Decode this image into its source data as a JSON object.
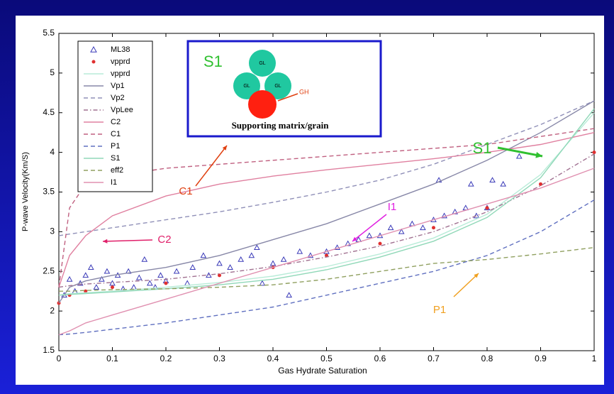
{
  "chart_data": {
    "type": "line",
    "xlabel": "Gas Hydrate Saturation",
    "ylabel": "P-wave Velocity(Km/S)",
    "xlim": [
      0,
      1
    ],
    "ylim": [
      1.5,
      5.5
    ],
    "xticks": [
      0,
      0.1,
      0.2,
      0.3,
      0.4,
      0.5,
      0.6,
      0.7,
      0.8,
      0.9,
      1
    ],
    "yticks": [
      1.5,
      2,
      2.5,
      3,
      3.5,
      4,
      4.5,
      5,
      5.5
    ],
    "grid": false,
    "legend": "upper left",
    "x": [
      0,
      0.02,
      0.05,
      0.1,
      0.2,
      0.3,
      0.4,
      0.5,
      0.6,
      0.7,
      0.8,
      0.9,
      1
    ],
    "series": [
      {
        "name": "ML38",
        "color": "#3a3ab8",
        "marker": "triangle",
        "x": [
          0.01,
          0.02,
          0.03,
          0.04,
          0.05,
          0.06,
          0.07,
          0.08,
          0.09,
          0.1,
          0.11,
          0.12,
          0.13,
          0.14,
          0.15,
          0.16,
          0.17,
          0.18,
          0.19,
          0.2,
          0.22,
          0.24,
          0.25,
          0.27,
          0.28,
          0.3,
          0.32,
          0.34,
          0.36,
          0.37,
          0.38,
          0.4,
          0.42,
          0.43,
          0.45,
          0.47,
          0.5,
          0.52,
          0.54,
          0.56,
          0.58,
          0.6,
          0.62,
          0.64,
          0.66,
          0.68,
          0.7,
          0.71,
          0.72,
          0.74,
          0.76,
          0.77,
          0.78,
          0.8,
          0.81,
          0.83,
          0.86
        ],
        "values": [
          2.2,
          2.4,
          2.25,
          2.35,
          2.45,
          2.55,
          2.3,
          2.4,
          2.5,
          2.35,
          2.45,
          2.28,
          2.5,
          2.3,
          2.42,
          2.65,
          2.35,
          2.3,
          2.45,
          2.38,
          2.5,
          2.35,
          2.55,
          2.7,
          2.45,
          2.6,
          2.55,
          2.65,
          2.7,
          2.8,
          2.35,
          2.6,
          2.65,
          2.2,
          2.75,
          2.7,
          2.75,
          2.8,
          2.85,
          2.9,
          2.95,
          2.95,
          3.05,
          3.0,
          3.1,
          3.05,
          3.15,
          3.65,
          3.2,
          3.25,
          3.3,
          3.6,
          3.2,
          3.3,
          3.65,
          3.6,
          3.95
        ]
      },
      {
        "name": "vpprd",
        "color": "#e03030",
        "marker": "dot",
        "values": [
          2.1,
          2.2,
          2.25,
          2.3,
          2.35,
          2.45,
          2.55,
          2.7,
          2.85,
          3.05,
          3.3,
          3.6,
          4.0
        ]
      },
      {
        "name": "vpprd",
        "color": "#b8ecd8",
        "dash": "solid",
        "values": [
          2.2,
          2.22,
          2.23,
          2.25,
          2.3,
          2.36,
          2.44,
          2.56,
          2.72,
          2.92,
          3.22,
          3.72,
          4.5
        ]
      },
      {
        "name": "Vp1",
        "color": "#8888a8",
        "dash": "solid",
        "values": [
          2.1,
          2.3,
          2.38,
          2.45,
          2.55,
          2.7,
          2.9,
          3.1,
          3.35,
          3.6,
          3.9,
          4.25,
          4.65
        ]
      },
      {
        "name": "Vp2",
        "color": "#9090b8",
        "dash": "dashed",
        "values": [
          2.95,
          2.97,
          3.0,
          3.05,
          3.15,
          3.25,
          3.37,
          3.5,
          3.65,
          3.85,
          4.1,
          4.35,
          4.65
        ]
      },
      {
        "name": "VpLee",
        "color": "#a07090",
        "dash": "dashdot",
        "values": [
          2.3,
          2.32,
          2.34,
          2.36,
          2.4,
          2.47,
          2.56,
          2.68,
          2.82,
          3.0,
          3.25,
          3.58,
          3.98
        ]
      },
      {
        "name": "C2",
        "color": "#e080a0",
        "dash": "solid",
        "values": [
          2.3,
          2.7,
          2.95,
          3.2,
          3.45,
          3.6,
          3.7,
          3.78,
          3.85,
          3.92,
          4.0,
          4.1,
          4.25
        ]
      },
      {
        "name": "C1",
        "color": "#c06080",
        "dash": "dashed",
        "values": [
          2.3,
          3.3,
          3.6,
          3.7,
          3.8,
          3.85,
          3.9,
          3.95,
          4.0,
          4.05,
          4.1,
          4.2,
          4.3
        ]
      },
      {
        "name": "P1",
        "color": "#6070c0",
        "dash": "dashed",
        "values": [
          1.7,
          1.71,
          1.73,
          1.77,
          1.85,
          1.95,
          2.05,
          2.2,
          2.35,
          2.5,
          2.7,
          3.0,
          3.4
        ]
      },
      {
        "name": "S1",
        "color": "#90d8b8",
        "dash": "solid",
        "values": [
          2.2,
          2.21,
          2.22,
          2.24,
          2.28,
          2.33,
          2.4,
          2.52,
          2.68,
          2.88,
          3.18,
          3.68,
          4.55
        ]
      },
      {
        "name": "eff2",
        "color": "#90a060",
        "dash": "dashed",
        "values": [
          2.25,
          2.25,
          2.26,
          2.27,
          2.28,
          2.3,
          2.33,
          2.4,
          2.5,
          2.6,
          2.65,
          2.72,
          2.8
        ]
      },
      {
        "name": "I1",
        "color": "#e090b0",
        "dash": "solid",
        "values": [
          1.7,
          1.75,
          1.85,
          1.95,
          2.15,
          2.35,
          2.55,
          2.75,
          2.95,
          3.15,
          3.35,
          3.55,
          3.8
        ]
      }
    ],
    "annotations": [
      {
        "text": "C1",
        "color": "#e04010"
      },
      {
        "text": "C2",
        "color": "#e0206a"
      },
      {
        "text": "I1",
        "color": "#e020e0"
      },
      {
        "text": "S1",
        "color": "#30c030"
      },
      {
        "text": "P1",
        "color": "#f0a020"
      }
    ],
    "inset": {
      "label": "S1",
      "grain": "GL",
      "hydrate": "GH",
      "caption": "Supporting matrix/grain"
    }
  }
}
